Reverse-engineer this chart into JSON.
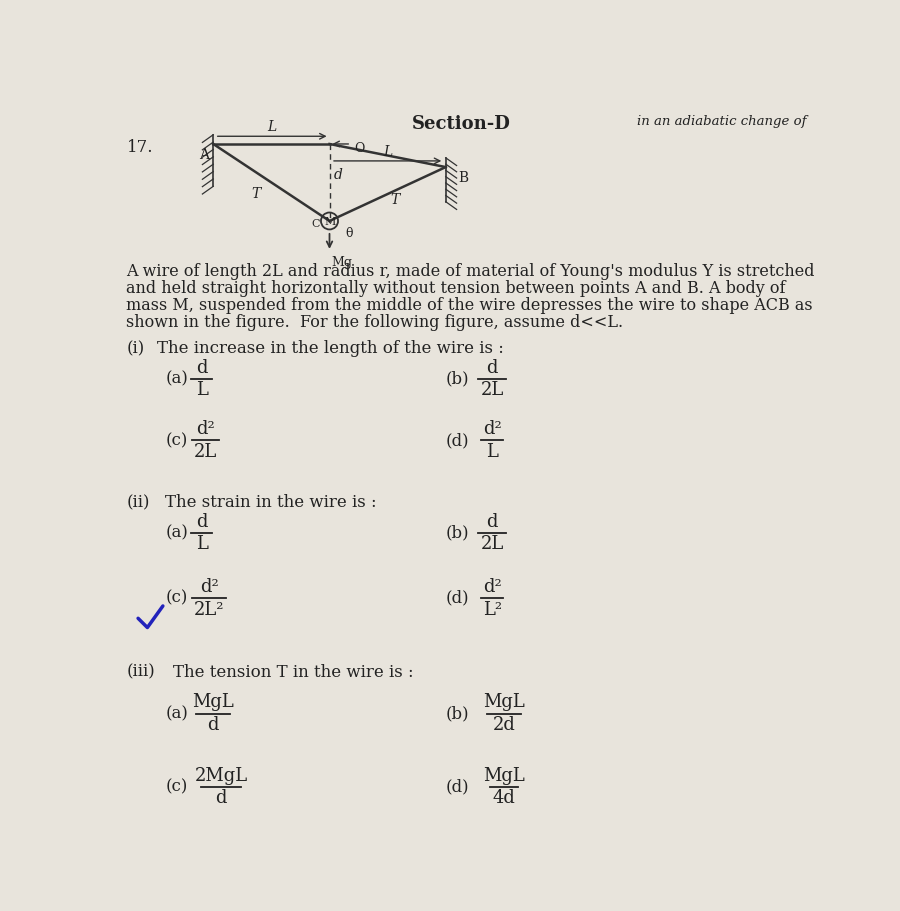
{
  "bg_color": "#e8e4dc",
  "section_label": "Section-D",
  "adiabatic_text": "in an adiabatic change of",
  "q_number": "17.",
  "desc_line1": "A wire of length 2L and radius r, made of material of Young's modulus Y is stretched",
  "desc_line2": "and held straight horizontally without tension between points A and B. A body of",
  "desc_line3": "mass M, suspended from the middle of the wire depresses the wire to shape ACB as",
  "desc_line4": "shown in the figure.  For the following figure, assume d<<L.",
  "sub_q1_label": "(i)",
  "sub_q1_text": "The increase in the length of the wire is :",
  "q1a_label": "(a)",
  "q1a_num": "d",
  "q1a_den": "L",
  "q1b_label": "(b)",
  "q1b_num": "d",
  "q1b_den": "2L",
  "q1c_label": "(c)",
  "q1c_num": "d²",
  "q1c_den": "2L",
  "q1d_label": "(d)",
  "q1d_num": "d²",
  "q1d_den": "L",
  "sub_q2_label": "(ii)",
  "sub_q2_text": "The strain in the wire is :",
  "q2a_label": "(a)",
  "q2a_num": "d",
  "q2a_den": "L",
  "q2b_label": "(b)",
  "q2b_num": "d",
  "q2b_den": "2L",
  "q2c_label": "(c)",
  "q2c_num": "d²",
  "q2c_den": "2L²",
  "q2d_label": "(d)",
  "q2d_num": "d²",
  "q2d_den": "L²",
  "sub_q3_label": "(iii)",
  "sub_q3_text": "The tension T in the wire is :",
  "q3a_label": "(a)",
  "q3a_num": "MgL",
  "q3a_den": "d",
  "q3b_label": "(b)",
  "q3b_num": "MgL",
  "q3b_den": "2d",
  "q3c_label": "(c)",
  "q3c_num": "2MgL",
  "q3c_den": "d",
  "q3d_label": "(d)",
  "q3d_num": "MgL",
  "q3d_den": "4d",
  "checkmark_color": "#2222bb",
  "text_color": "#222222",
  "line_color": "#333333"
}
